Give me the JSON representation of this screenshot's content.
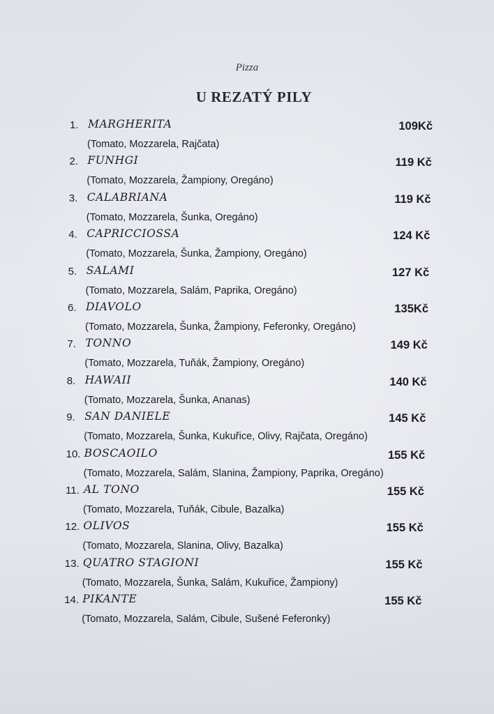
{
  "subtitle": "Pizza",
  "title": "U REZATÝ PILY",
  "items": [
    {
      "num": "1.",
      "name": "MARGHERITA",
      "price": "109Kč",
      "desc": "(Tomato, Mozzarela, Rajčata)"
    },
    {
      "num": "2.",
      "name": "FUNHGI",
      "price": "119 Kč",
      "desc": "(Tomato, Mozzarela, Žampiony, Oregáno)"
    },
    {
      "num": "3.",
      "name": "CALABRIANA",
      "price": "119 Kč",
      "desc": "(Tomato, Mozzarela, Šunka, Oregáno)"
    },
    {
      "num": "4.",
      "name": "CAPRICCIOSSA",
      "price": "124 Kč",
      "desc": "(Tomato, Mozzarela, Šunka, Žampiony, Oregáno)"
    },
    {
      "num": "5.",
      "name": "SALAMI",
      "price": "127 Kč",
      "desc": "(Tomato, Mozzarela, Salám, Paprika, Oregáno)"
    },
    {
      "num": "6.",
      "name": "DIAVOLO",
      "price": "135Kč",
      "desc": "(Tomato, Mozzarela, Šunka, Žampiony, Feferonky, Oregáno)"
    },
    {
      "num": "7.",
      "name": "TONNO",
      "price": "149 Kč",
      "desc": "(Tomato, Mozzarela, Tuňák, Žampiony, Oregáno)"
    },
    {
      "num": "8.",
      "name": "HAWAII",
      "price": "140 Kč",
      "desc": "(Tomato, Mozzarela, Šunka, Ananas)"
    },
    {
      "num": "9.",
      "name": "SAN DANIELE",
      "price": "145 Kč",
      "desc": "(Tomato, Mozzarela, Šunka, Kukuřice, Olivy, Rajčata, Oregáno)"
    },
    {
      "num": "10.",
      "name": "BOSCAOILO",
      "price": "155 Kč",
      "desc": "(Tomato, Mozzarela, Salám, Slanina, Žampiony, Paprika, Oregáno)"
    },
    {
      "num": "11.",
      "name": "AL TONO",
      "price": "155 Kč",
      "desc": "(Tomato, Mozzarela, Tuňák, Cibule, Bazalka)"
    },
    {
      "num": "12.",
      "name": "OLIVOS",
      "price": "155 Kč",
      "desc": "(Tomato, Mozzarela, Slanina, Olivy, Bazalka)"
    },
    {
      "num": "13.",
      "name": "QUATRO STAGIONI",
      "price": "155 Kč",
      "desc": "(Tomato, Mozzarela, Šunka, Salám, Kukuřice, Žampiony)"
    },
    {
      "num": "14.",
      "name": "PIKANTE",
      "price": "155 Kč",
      "desc": "(Tomato, Mozzarela, Salám, Cibule, Sušené Feferonky)"
    }
  ]
}
